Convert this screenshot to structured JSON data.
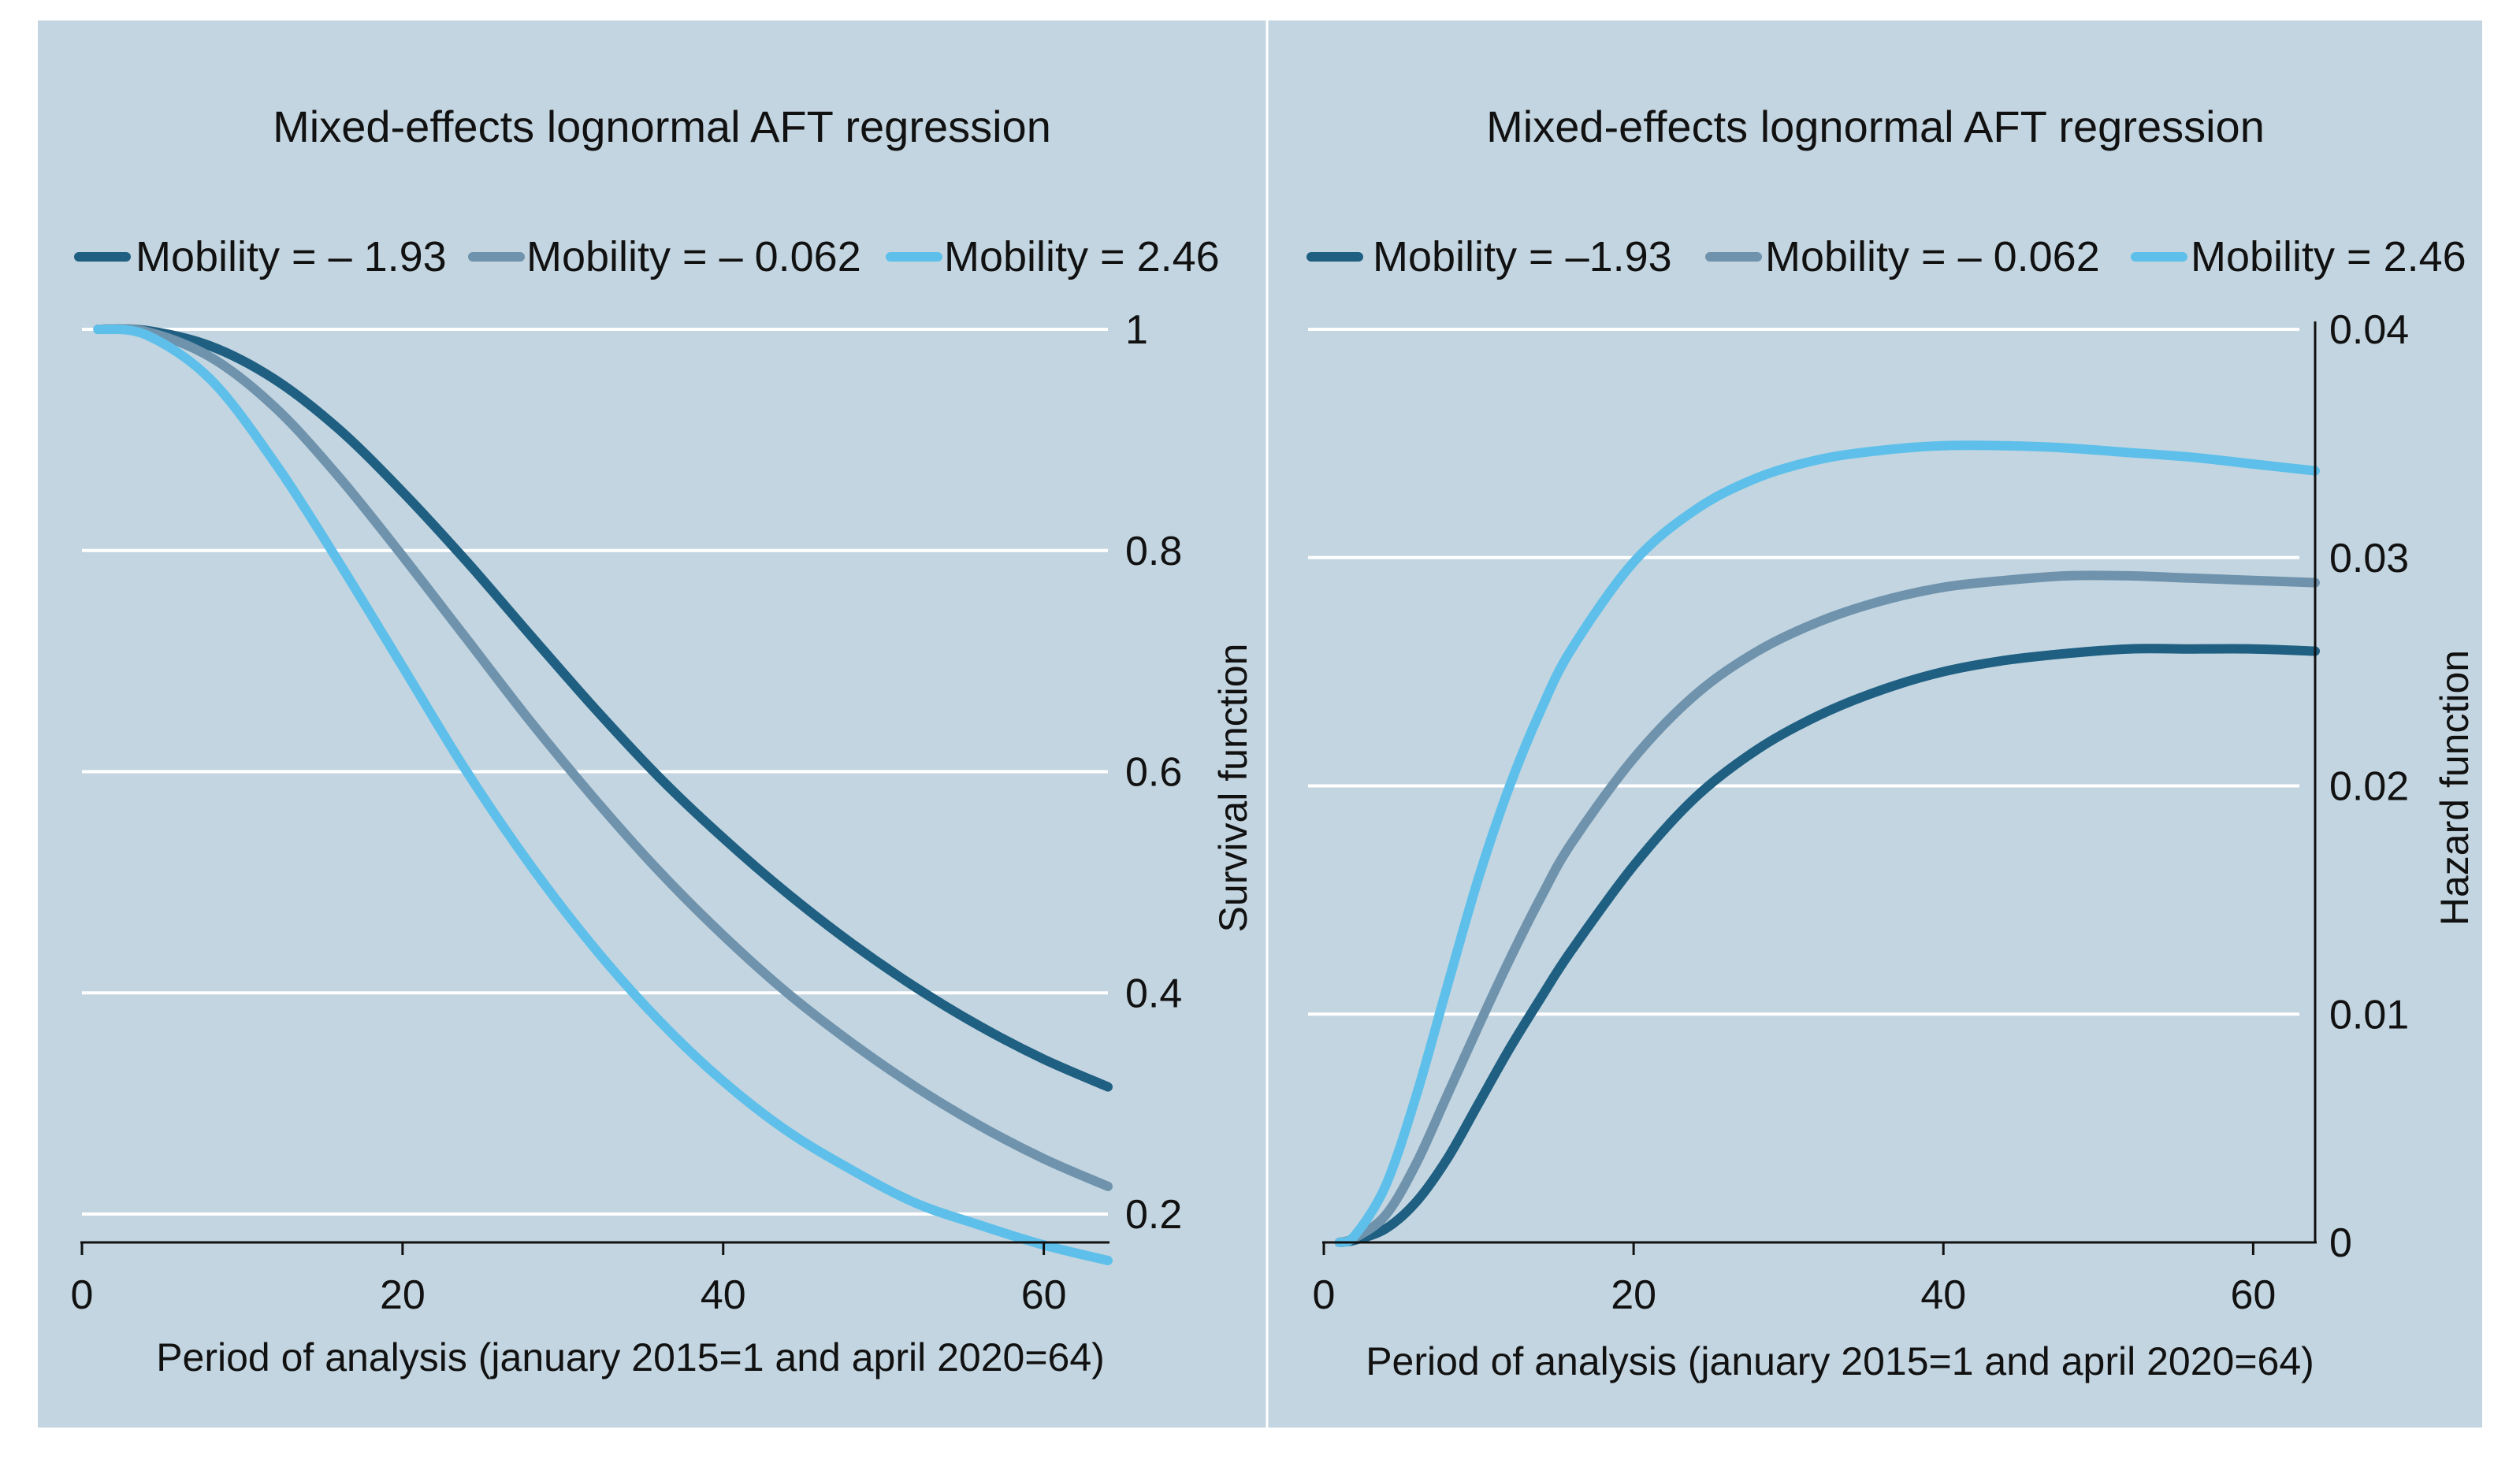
{
  "colors": {
    "panel_bg": "#c3d5e0",
    "grid": "#ffffff",
    "axis": "#111111",
    "series": [
      "#1e5f82",
      "#6f93ad",
      "#5ec0ea"
    ]
  },
  "chart_data": [
    {
      "type": "line",
      "title": "Mixed-effects lognormal AFT regression",
      "xlabel": "Period of analysis (january 2015=1 and april 2020=64)",
      "ylabel": "Survival function",
      "xlim": [
        0,
        64
      ],
      "ylim": [
        0.17,
        1.0
      ],
      "x_ticks": [
        0,
        20,
        40,
        60
      ],
      "x_tick_labels": [
        "0",
        "20",
        "40",
        "60"
      ],
      "y_ticks": [
        0.2,
        0.4,
        0.6,
        0.8,
        1.0
      ],
      "y_tick_labels": [
        "0.2",
        "0.4",
        "0.6",
        "0.8",
        "1"
      ],
      "legend_position": "top",
      "x": [
        1,
        4,
        8,
        12,
        16,
        20,
        24,
        28,
        32,
        36,
        40,
        44,
        48,
        52,
        56,
        60,
        64
      ],
      "series": [
        {
          "name": "Mobility = – 1.93",
          "values": [
            1.0,
            0.999,
            0.985,
            0.955,
            0.91,
            0.853,
            0.79,
            0.723,
            0.657,
            0.595,
            0.54,
            0.49,
            0.445,
            0.405,
            0.37,
            0.34,
            0.315
          ]
        },
        {
          "name": "Mobility = – 0.062",
          "values": [
            1.0,
            0.998,
            0.975,
            0.93,
            0.867,
            0.795,
            0.72,
            0.645,
            0.575,
            0.51,
            0.452,
            0.4,
            0.355,
            0.315,
            0.28,
            0.25,
            0.225
          ]
        },
        {
          "name": "Mobility = 2.46",
          "values": [
            1.0,
            0.995,
            0.955,
            0.88,
            0.79,
            0.695,
            0.6,
            0.515,
            0.44,
            0.375,
            0.32,
            0.275,
            0.24,
            0.21,
            0.19,
            0.172,
            0.158
          ]
        }
      ]
    },
    {
      "type": "line",
      "title": "Mixed-effects lognormal AFT regression",
      "xlabel": "Period of analysis (january 2015=1 and april 2020=64)",
      "ylabel": "Hazard function",
      "xlim": [
        0,
        64
      ],
      "ylim": [
        0,
        0.04
      ],
      "x_ticks": [
        0,
        20,
        40,
        60
      ],
      "x_tick_labels": [
        "0",
        "20",
        "40",
        "60"
      ],
      "y_ticks": [
        0,
        0.01,
        0.02,
        0.03,
        0.04
      ],
      "y_tick_labels": [
        "0",
        "0.01",
        "0.02",
        "0.03",
        "0.04"
      ],
      "legend_position": "top",
      "x": [
        1,
        2,
        4,
        6,
        8,
        10,
        12,
        14,
        16,
        20,
        24,
        28,
        32,
        36,
        40,
        44,
        48,
        52,
        56,
        60,
        64
      ],
      "series": [
        {
          "name": "Mobility = –1.93",
          "values": [
            0.0,
            0.0001,
            0.0006,
            0.0018,
            0.0037,
            0.0061,
            0.0085,
            0.0107,
            0.0128,
            0.0165,
            0.0195,
            0.0216,
            0.0231,
            0.0242,
            0.025,
            0.0255,
            0.0258,
            0.026,
            0.026,
            0.026,
            0.0259
          ]
        },
        {
          "name": "Mobility = – 0.062",
          "values": [
            0.0,
            0.0002,
            0.0012,
            0.0035,
            0.0065,
            0.0095,
            0.0124,
            0.0151,
            0.0175,
            0.0212,
            0.024,
            0.0259,
            0.0272,
            0.0281,
            0.0287,
            0.029,
            0.0292,
            0.0292,
            0.0291,
            0.029,
            0.0289
          ]
        },
        {
          "name": "Mobility = 2.46",
          "values": [
            0.0,
            0.0003,
            0.0025,
            0.0065,
            0.0113,
            0.016,
            0.02,
            0.0233,
            0.026,
            0.0298,
            0.0321,
            0.0335,
            0.0343,
            0.0347,
            0.0349,
            0.0349,
            0.0348,
            0.0346,
            0.0344,
            0.0341,
            0.0338
          ]
        }
      ]
    }
  ]
}
